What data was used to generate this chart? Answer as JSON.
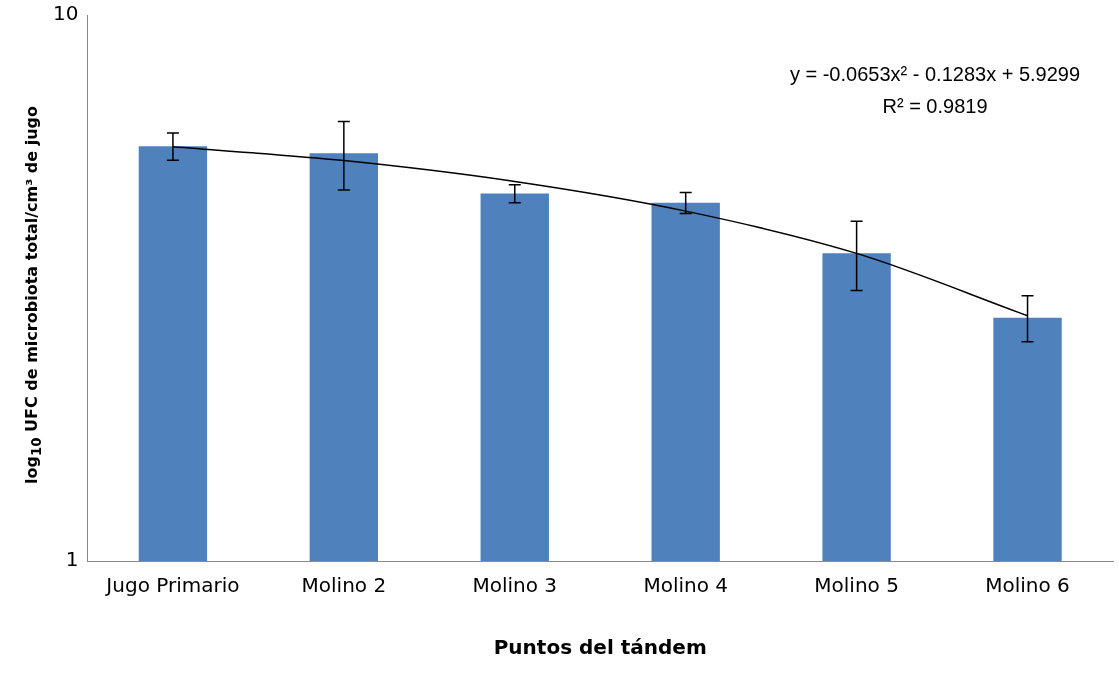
{
  "chart_data": {
    "type": "bar",
    "xlabel": "Puntos del tándem",
    "ylabel": "log$_{10}$ UFC de microbiota total/cm³ de jugo",
    "categories": [
      "Jugo Primario",
      "Molino 2",
      "Molino 3",
      "Molino 4",
      "Molino 5",
      "Molino 6"
    ],
    "series": [
      {
        "color": "#4f81bd",
        "values": [
          5.75,
          5.58,
          4.71,
          4.53,
          3.66,
          2.79
        ],
        "errors": [
          0.33,
          0.8,
          0.18,
          0.2,
          0.53,
          0.27
        ]
      },
      {
        "type": "line",
        "color": "#000000",
        "marker": "none",
        "values": [
          5.736,
          5.412,
          4.955,
          4.373,
          3.659,
          2.813
        ]
      }
    ],
    "log": "y",
    "ylim": [
      1,
      10
    ],
    "yticks": [
      1,
      10
    ],
    "grid": false,
    "legend": false,
    "annotations": [
      "y = -0.0653x² - 0.1283x + 5.9299",
      "R² = 0.9819"
    ]
  }
}
